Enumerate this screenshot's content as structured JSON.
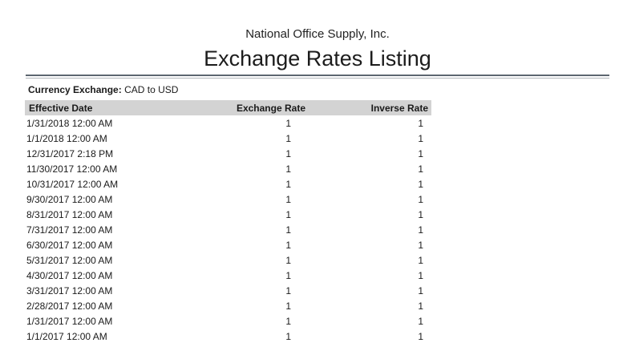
{
  "report": {
    "company": "National Office Supply, Inc.",
    "title": "Exchange Rates Listing",
    "filter": {
      "label": "Currency Exchange:",
      "value": "CAD to USD"
    }
  },
  "table": {
    "columns": [
      "Effective Date",
      "Exchange Rate",
      "Inverse Rate"
    ],
    "rows": [
      {
        "date": "1/31/2018 12:00 AM",
        "rate": "1",
        "inverse": "1"
      },
      {
        "date": "1/1/2018 12:00 AM",
        "rate": "1",
        "inverse": "1"
      },
      {
        "date": "12/31/2017 2:18 PM",
        "rate": "1",
        "inverse": "1"
      },
      {
        "date": "11/30/2017 12:00 AM",
        "rate": "1",
        "inverse": "1"
      },
      {
        "date": "10/31/2017 12:00 AM",
        "rate": "1",
        "inverse": "1"
      },
      {
        "date": "9/30/2017 12:00 AM",
        "rate": "1",
        "inverse": "1"
      },
      {
        "date": "8/31/2017 12:00 AM",
        "rate": "1",
        "inverse": "1"
      },
      {
        "date": "7/31/2017 12:00 AM",
        "rate": "1",
        "inverse": "1"
      },
      {
        "date": "6/30/2017 12:00 AM",
        "rate": "1",
        "inverse": "1"
      },
      {
        "date": "5/31/2017 12:00 AM",
        "rate": "1",
        "inverse": "1"
      },
      {
        "date": "4/30/2017 12:00 AM",
        "rate": "1",
        "inverse": "1"
      },
      {
        "date": "3/31/2017 12:00 AM",
        "rate": "1",
        "inverse": "1"
      },
      {
        "date": "2/28/2017 12:00 AM",
        "rate": "1",
        "inverse": "1"
      },
      {
        "date": "1/31/2017 12:00 AM",
        "rate": "1",
        "inverse": "1"
      },
      {
        "date": "1/1/2017 12:00 AM",
        "rate": "1",
        "inverse": "1"
      }
    ]
  },
  "colors": {
    "header_bg": "#d3d3d3",
    "rule_dark": "#5d6670",
    "rule_light": "#b4b8bc",
    "text": "#1a1a1a"
  }
}
